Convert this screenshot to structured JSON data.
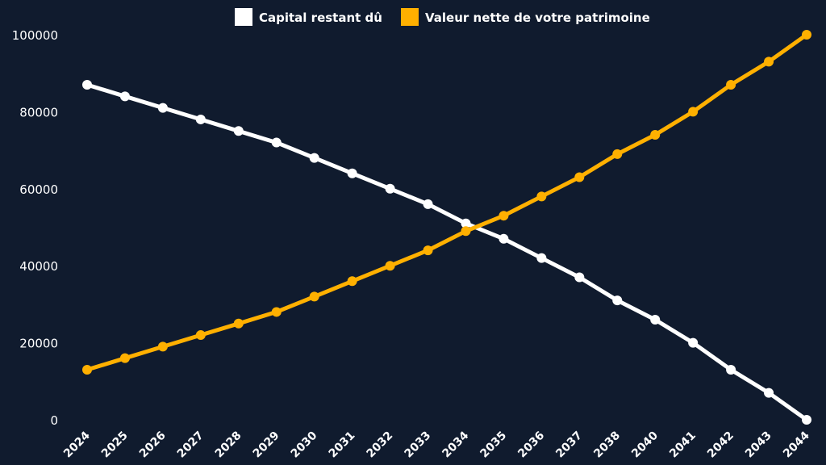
{
  "chart_data": {
    "type": "line",
    "x": [
      "2024",
      "2025",
      "2026",
      "2027",
      "2028",
      "2029",
      "2030",
      "2031",
      "2032",
      "2033",
      "2034",
      "2035",
      "2036",
      "2037",
      "2038",
      "2040",
      "2041",
      "2042",
      "2043",
      "2044"
    ],
    "series": [
      {
        "name": "Capital restant dû",
        "color": "#ffffff",
        "values": [
          87000,
          84000,
          81000,
          78000,
          75000,
          72000,
          68000,
          64000,
          60000,
          56000,
          51000,
          47000,
          42000,
          37000,
          31000,
          26000,
          20000,
          13000,
          7000,
          0
        ]
      },
      {
        "name": "Valeur nette de votre patrimoine",
        "color": "#ffb000",
        "values": [
          13000,
          16000,
          19000,
          22000,
          25000,
          28000,
          32000,
          36000,
          40000,
          44000,
          49000,
          53000,
          58000,
          63000,
          69000,
          74000,
          80000,
          87000,
          93000,
          100000
        ]
      }
    ],
    "yticks": [
      0,
      20000,
      40000,
      60000,
      80000,
      100000
    ],
    "ylim": [
      0,
      100000
    ],
    "grid": false,
    "legend_position": "top-center",
    "background": "#101b2e"
  }
}
